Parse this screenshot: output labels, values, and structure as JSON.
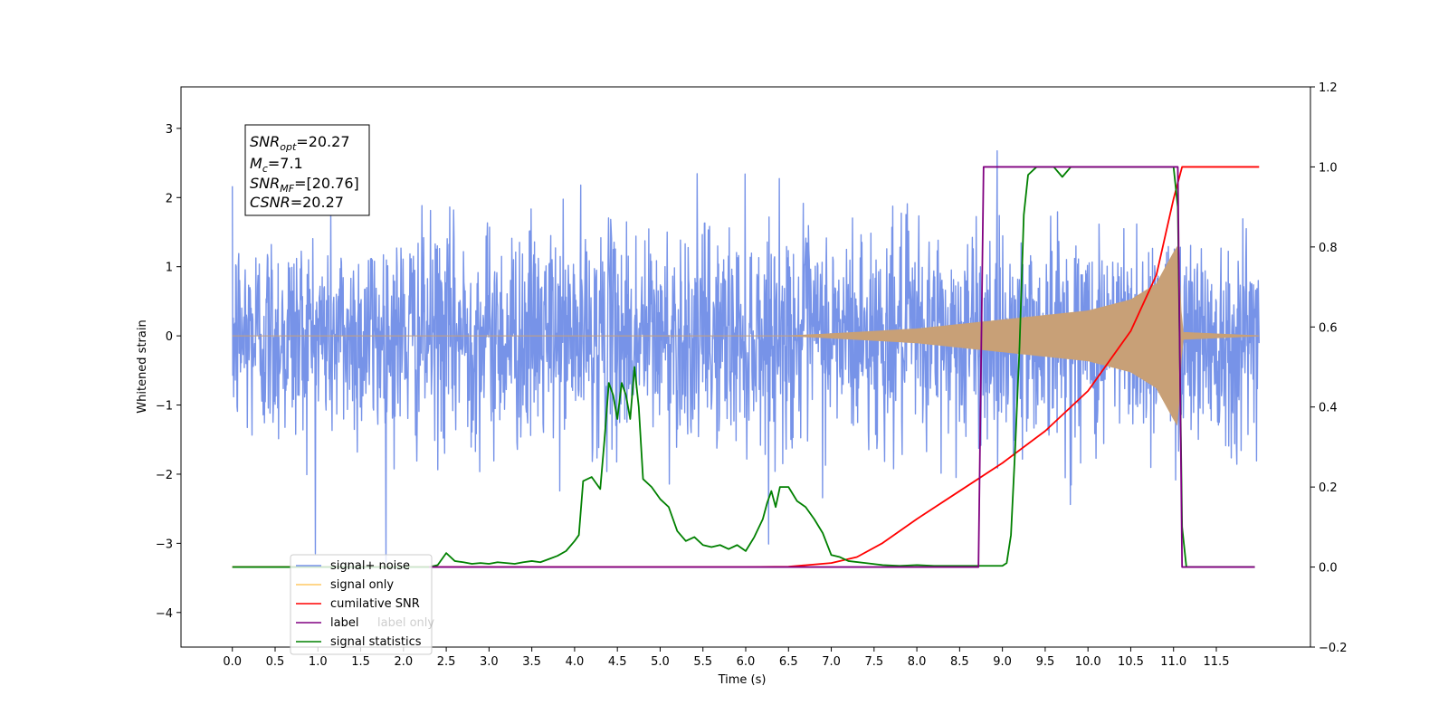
{
  "colors": {
    "signal_noise": "#7793e8",
    "signal_only": "#c8a077",
    "signal_only_legend": "#ffc864",
    "cumulative_snr": "#ff0000",
    "label": "#800080",
    "signal_statistics": "#008000"
  },
  "info_box": {
    "snr_opt_sym": "SNR",
    "snr_opt_sub": "opt",
    "snr_opt_val": "=20.27",
    "mc_sym": "M",
    "mc_sub": "c",
    "mc_val": "=7.1",
    "snr_mf_sym": "SNR",
    "snr_mf_sub": "MF",
    "snr_mf_val": "=[20.76]",
    "csnr_sym": "CSNR",
    "csnr_val": "=20.27"
  },
  "chart_data": {
    "type": "line",
    "title": "",
    "xlabel": "Time (s)",
    "ylabel": "Whitened strain",
    "xlim": [
      -0.6,
      12.6
    ],
    "ylim": [
      -4.5,
      3.6
    ],
    "y2lim": [
      -0.2,
      1.2
    ],
    "x_ticks": [
      0.0,
      0.5,
      1.0,
      1.5,
      2.0,
      2.5,
      3.0,
      3.5,
      4.0,
      4.5,
      5.0,
      5.5,
      6.0,
      6.5,
      7.0,
      7.5,
      8.0,
      8.5,
      9.0,
      9.5,
      10.0,
      10.5,
      11.0,
      11.5
    ],
    "x_tick_labels": [
      "0.0",
      "0.5",
      "1.0",
      "1.5",
      "2.0",
      "2.5",
      "3.0",
      "3.5",
      "4.0",
      "4.5",
      "5.0",
      "5.5",
      "6.0",
      "6.5",
      "7.0",
      "7.5",
      "8.0",
      "8.5",
      "9.0",
      "9.5",
      "10.0",
      "10.5",
      "11.0",
      "11.5"
    ],
    "y_ticks": [
      -4,
      -3,
      -2,
      -1,
      0,
      1,
      2,
      3
    ],
    "y_tick_labels": [
      "−4",
      "−3",
      "−2",
      "−1",
      "0",
      "1",
      "2",
      "3"
    ],
    "y2_ticks": [
      -0.2,
      0.0,
      0.2,
      0.4,
      0.6,
      0.8,
      1.0,
      1.2
    ],
    "y2_tick_labels": [
      "−0.2",
      "0.0",
      "0.2",
      "0.4",
      "0.6",
      "0.8",
      "1.0",
      "1.2"
    ],
    "legend_position": "lower-left",
    "series": [
      {
        "name": "signal+ noise",
        "axis": "left",
        "x_range": [
          0.0,
          12.0
        ],
        "noise_sigma": 0.78,
        "max_abs": 3.3,
        "samples": 2400
      },
      {
        "name": "signal only",
        "axis": "left",
        "x_range": [
          0.0,
          12.0
        ],
        "envelope": [
          [
            0.0,
            0.0
          ],
          [
            6.5,
            0.0
          ],
          [
            7.0,
            0.03
          ],
          [
            8.0,
            0.1
          ],
          [
            9.0,
            0.23
          ],
          [
            10.0,
            0.36
          ],
          [
            10.5,
            0.52
          ],
          [
            10.8,
            0.75
          ],
          [
            11.0,
            1.2
          ],
          [
            11.05,
            1.3
          ],
          [
            11.1,
            0.05
          ],
          [
            12.0,
            0.0
          ]
        ]
      },
      {
        "name": "cumilative SNR",
        "axis": "right",
        "x": [
          0.0,
          6.0,
          6.5,
          7.0,
          7.3,
          7.6,
          8.0,
          8.5,
          9.0,
          9.5,
          10.0,
          10.5,
          10.8,
          11.0,
          11.05,
          11.1,
          12.0
        ],
        "y": [
          0.0,
          0.0,
          0.001,
          0.01,
          0.025,
          0.06,
          0.12,
          0.19,
          0.26,
          0.34,
          0.44,
          0.59,
          0.73,
          0.92,
          0.96,
          1.0,
          1.0
        ]
      },
      {
        "name": "label",
        "axis": "right",
        "x": [
          2.3,
          8.72,
          8.78,
          11.05,
          11.1,
          11.95
        ],
        "y": [
          0.0,
          0.0,
          1.0,
          1.0,
          0.0,
          0.0
        ]
      },
      {
        "name": "label only",
        "axis": "right",
        "x": [],
        "y": []
      },
      {
        "name": "signal statistics",
        "axis": "right",
        "x": [
          0.0,
          2.3,
          2.4,
          2.5,
          2.6,
          2.7,
          2.8,
          2.9,
          3.0,
          3.1,
          3.2,
          3.3,
          3.4,
          3.5,
          3.6,
          3.7,
          3.8,
          3.9,
          4.0,
          4.05,
          4.1,
          4.2,
          4.3,
          4.35,
          4.4,
          4.45,
          4.5,
          4.55,
          4.6,
          4.65,
          4.7,
          4.75,
          4.8,
          4.9,
          5.0,
          5.1,
          5.2,
          5.3,
          5.4,
          5.5,
          5.6,
          5.7,
          5.8,
          5.9,
          6.0,
          6.1,
          6.2,
          6.25,
          6.3,
          6.35,
          6.4,
          6.5,
          6.6,
          6.7,
          6.8,
          6.9,
          7.0,
          7.1,
          7.2,
          7.4,
          7.6,
          7.8,
          8.0,
          8.2,
          8.4,
          8.6,
          8.8,
          9.0,
          9.05,
          9.1,
          9.15,
          9.2,
          9.25,
          9.3,
          9.4,
          9.5,
          9.6,
          9.7,
          9.8,
          9.9,
          10.0,
          10.5,
          11.0,
          11.05,
          11.1,
          11.15,
          11.2,
          11.95
        ],
        "y": [
          0.0,
          0.0,
          0.005,
          0.035,
          0.015,
          0.012,
          0.008,
          0.01,
          0.008,
          0.012,
          0.01,
          0.008,
          0.012,
          0.015,
          0.012,
          0.02,
          0.028,
          0.04,
          0.065,
          0.08,
          0.215,
          0.225,
          0.195,
          0.32,
          0.46,
          0.43,
          0.37,
          0.46,
          0.43,
          0.37,
          0.5,
          0.4,
          0.22,
          0.2,
          0.17,
          0.15,
          0.09,
          0.065,
          0.075,
          0.055,
          0.05,
          0.055,
          0.045,
          0.055,
          0.04,
          0.075,
          0.12,
          0.16,
          0.19,
          0.15,
          0.2,
          0.2,
          0.165,
          0.15,
          0.12,
          0.085,
          0.03,
          0.025,
          0.015,
          0.01,
          0.005,
          0.003,
          0.005,
          0.003,
          0.003,
          0.003,
          0.003,
          0.003,
          0.01,
          0.08,
          0.3,
          0.55,
          0.88,
          0.98,
          1.0,
          1.0,
          1.0,
          0.975,
          1.0,
          1.0,
          1.0,
          1.0,
          1.0,
          0.9,
          0.1,
          0.0,
          0.0,
          0.0
        ]
      }
    ]
  }
}
